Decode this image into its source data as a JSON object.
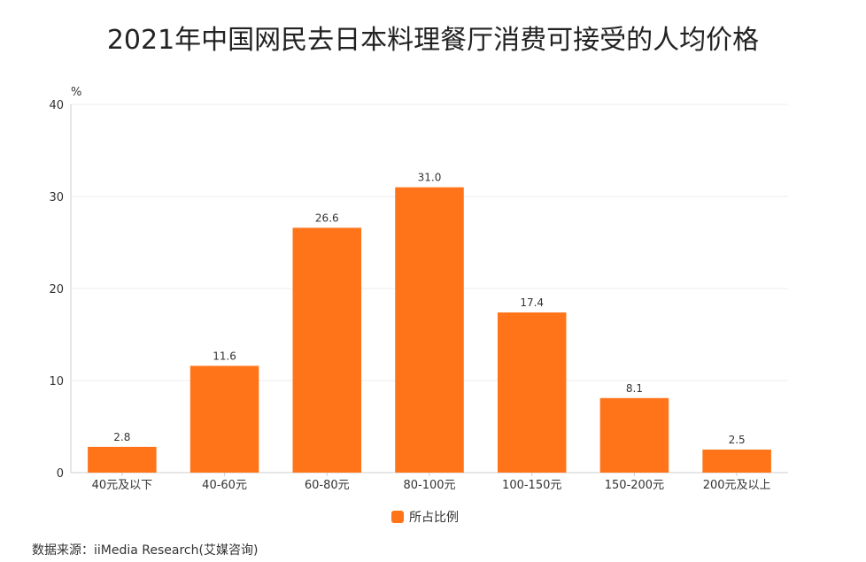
{
  "chart_data": {
    "type": "bar",
    "title": "2021年中国网民去日本料理餐厅消费可接受的人均价格",
    "ylabel": "%",
    "xlabel": "",
    "ylim": [
      0,
      40
    ],
    "yticks": [
      "0",
      "10",
      "20",
      "30",
      "40"
    ],
    "categories": [
      "40元及以下",
      "40-60元",
      "60-80元",
      "80-100元",
      "100-150元",
      "150-200元",
      "200元及以上"
    ],
    "series": [
      {
        "name": "所占比例",
        "values": [
          2.8,
          11.6,
          26.6,
          31.0,
          17.4,
          8.1,
          2.5
        ],
        "value_labels": [
          "2.8",
          "11.6",
          "26.6",
          "31.0",
          "17.4",
          "8.1",
          "2.5"
        ]
      }
    ],
    "color": "#ff7419",
    "grid": true,
    "legend_position": "bottom-center",
    "source": "数据来源：iiMedia Research(艾媒咨询)"
  }
}
